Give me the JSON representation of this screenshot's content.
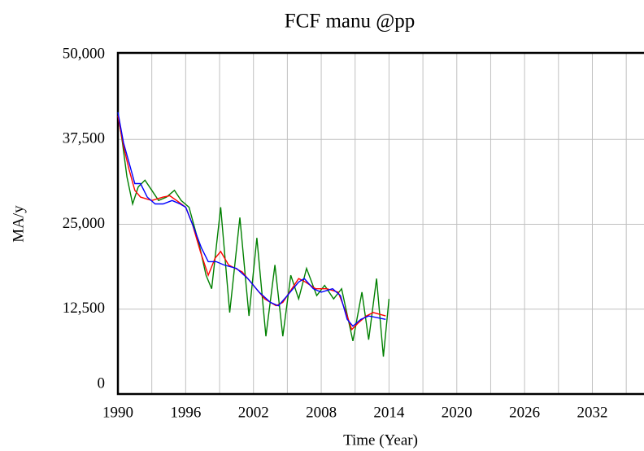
{
  "chart_data": {
    "type": "line",
    "title": "FCF manu @pp",
    "ylabel": "MA/y",
    "xlabel": "Time (Year)",
    "xlim": [
      1990,
      2036.5
    ],
    "xticks": [
      1990,
      1996,
      2002,
      2008,
      2014,
      2020,
      2026,
      2032
    ],
    "x_minor_ticks": [
      1993,
      1999,
      2005,
      2011,
      2017,
      2023,
      2029,
      2035
    ],
    "ylim": [
      0,
      50000
    ],
    "yticks": [
      0,
      {
        "value": 12500,
        "label": "12,500"
      },
      {
        "value": 25000,
        "label": "25,000"
      },
      {
        "value": 37500,
        "label": "37,500"
      },
      {
        "value": 50000,
        "label": "50,000"
      }
    ],
    "grid": true,
    "series": [
      {
        "color": "#008000",
        "x": [
          1990,
          1990.4,
          1990.8,
          1991.3,
          1991.8,
          1992.4,
          1993,
          1993.6,
          1994.3,
          1995,
          1995.6,
          1996.3,
          1997.2,
          1997.8,
          1998.3,
          1999.1,
          1999.9,
          2000.8,
          2001.6,
          2002.3,
          2003.1,
          2003.9,
          2004.6,
          2005.3,
          2006,
          2006.7,
          2007.6,
          2008.3,
          2009.1,
          2009.8,
          2010.8,
          2011.6,
          2012.2,
          2012.9,
          2013.5,
          2014
        ],
        "values": [
          41500,
          37000,
          32000,
          28000,
          30500,
          31500,
          30000,
          28500,
          29000,
          30000,
          28500,
          27500,
          22000,
          17500,
          15500,
          27500,
          12000,
          26000,
          11500,
          23000,
          8500,
          19000,
          8500,
          17500,
          14000,
          18500,
          14500,
          16000,
          14000,
          15500,
          7800,
          15000,
          8000,
          17000,
          5500,
          14000
        ]
      },
      {
        "color": "#ff0000",
        "x": [
          1990,
          1990.5,
          1991,
          1991.5,
          1992,
          1993,
          1994,
          1994.6,
          1995.2,
          1996,
          1996.6,
          1997.3,
          1998,
          1998.6,
          1999.1,
          1999.8,
          2001,
          2002,
          2003,
          2004,
          2004.6,
          2005.4,
          2006,
          2006.6,
          2007.5,
          2008.5,
          2009.5,
          2010.2,
          2010.7,
          2011.3,
          2012,
          2012.6,
          2013.7
        ],
        "values": [
          41000,
          36500,
          33000,
          30000,
          29000,
          28500,
          29000,
          29200,
          28500,
          27500,
          25000,
          21000,
          17500,
          20000,
          21000,
          19000,
          18000,
          16000,
          14000,
          13000,
          13500,
          15500,
          17000,
          16500,
          15500,
          15500,
          15000,
          12000,
          9500,
          10500,
          11500,
          12000,
          11500
        ]
      },
      {
        "color": "#0000ff",
        "x": [
          1990,
          1990.5,
          1991,
          1991.5,
          1992,
          1992.6,
          1993.3,
          1994,
          1994.8,
          1995.5,
          1996,
          1996.6,
          1997.4,
          1998,
          1998.7,
          1999.4,
          2000.5,
          2001.5,
          2002.5,
          2003.5,
          2004.2,
          2005,
          2006,
          2006.5,
          2007.3,
          2008,
          2009,
          2009.7,
          2010.3,
          2010.8,
          2011.5,
          2012.2,
          2013.7
        ],
        "values": [
          41500,
          37000,
          34000,
          31000,
          31000,
          29000,
          28000,
          28000,
          28500,
          28000,
          27500,
          25000,
          21500,
          19500,
          19500,
          19000,
          18500,
          17000,
          15000,
          13500,
          13000,
          14500,
          16500,
          17000,
          15500,
          15000,
          15500,
          14500,
          11000,
          10000,
          11000,
          11500,
          11000
        ]
      }
    ]
  }
}
